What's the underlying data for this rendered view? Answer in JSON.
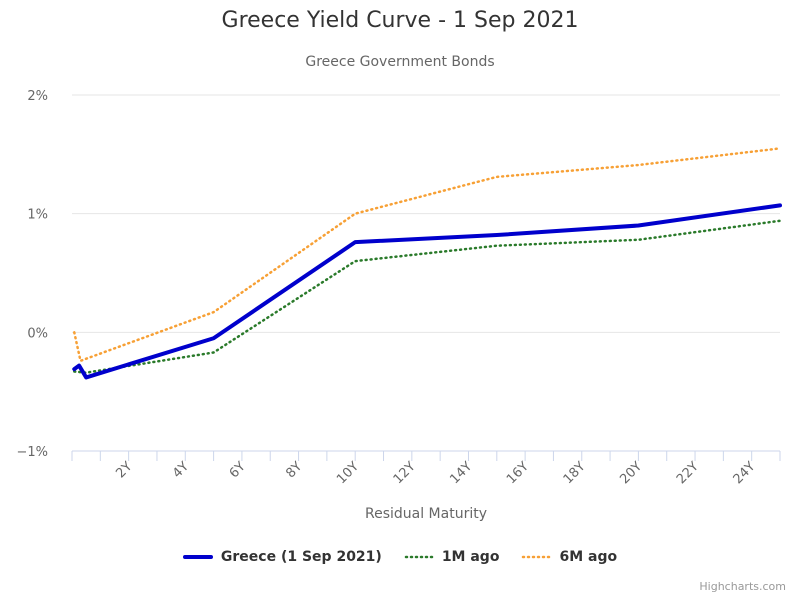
{
  "title": "Greece Yield Curve - 1 Sep 2021",
  "subtitle": "Greece Government Bonds",
  "credits": "Highcharts.com",
  "chart_data": {
    "type": "line",
    "title": "Greece Yield Curve - 1 Sep 2021",
    "subtitle": "Greece Government Bonds",
    "xlabel": "Residual Maturity",
    "ylabel": "",
    "xlim": [
      0,
      25
    ],
    "ylim": [
      -1,
      2
    ],
    "x_ticks": [
      2,
      4,
      6,
      8,
      10,
      12,
      14,
      16,
      18,
      20,
      22,
      24
    ],
    "x_tick_labels": [
      "2Y",
      "4Y",
      "6Y",
      "8Y",
      "10Y",
      "12Y",
      "14Y",
      "16Y",
      "18Y",
      "20Y",
      "22Y",
      "24Y"
    ],
    "y_ticks": [
      -1,
      0,
      1,
      2
    ],
    "y_tick_labels": [
      "−1%",
      "0%",
      "1%",
      "2%"
    ],
    "grid": true,
    "legend": "bottom-center",
    "series": [
      {
        "name": "Greece (1 Sep 2021)",
        "color": "#0000cc",
        "style": "solid",
        "points": [
          [
            0.08,
            -0.31
          ],
          [
            0.25,
            -0.28
          ],
          [
            0.5,
            -0.38
          ],
          [
            5,
            -0.05
          ],
          [
            10,
            0.76
          ],
          [
            15,
            0.82
          ],
          [
            20,
            0.9
          ],
          [
            25,
            1.07
          ]
        ]
      },
      {
        "name": "1M ago",
        "color": "#2a7a2a",
        "style": "dotted",
        "points": [
          [
            0.08,
            -0.33
          ],
          [
            0.5,
            -0.34
          ],
          [
            5,
            -0.17
          ],
          [
            10,
            0.6
          ],
          [
            15,
            0.73
          ],
          [
            20,
            0.78
          ],
          [
            25,
            0.94
          ]
        ]
      },
      {
        "name": "6M ago",
        "color": "#f7a035",
        "style": "dotted",
        "points": [
          [
            0.08,
            0.0
          ],
          [
            0.3,
            -0.24
          ],
          [
            5,
            0.17
          ],
          [
            10,
            1.0
          ],
          [
            15,
            1.31
          ],
          [
            20,
            1.41
          ],
          [
            25,
            1.55
          ]
        ]
      }
    ]
  }
}
